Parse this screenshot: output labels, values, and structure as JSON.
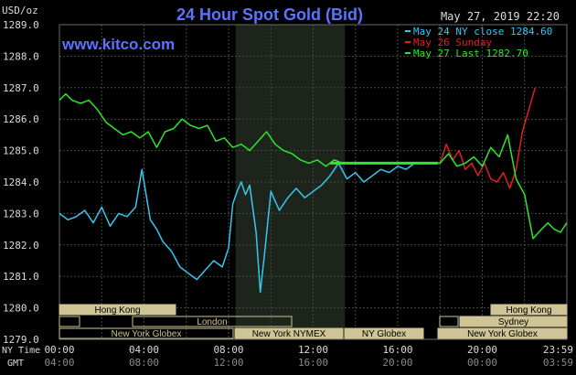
{
  "header": {
    "title": "24 Hour Spot Gold (Bid)",
    "timestamp": "May 27, 2019 22:20",
    "unit_label": "USD/oz",
    "website": "www.kitco.com"
  },
  "legend": [
    {
      "label": "May 24 NY close 1284.60",
      "color": "#35c8f0"
    },
    {
      "label": "May 26 Sunday",
      "color": "#e02020"
    },
    {
      "label": "May 27 Last 1282.70",
      "color": "#2ee62e"
    }
  ],
  "time_axis": {
    "ny_caption": "NY Time",
    "gmt_caption": "GMT",
    "ny_ticks": [
      "00:00",
      "04:00",
      "08:00",
      "12:00",
      "16:00",
      "20:00",
      "23:59"
    ],
    "gmt_ticks": [
      "04:00",
      "08:00",
      "12:00",
      "16:00",
      "20:00",
      "00:00",
      "03:59"
    ]
  },
  "sessions": {
    "hong_kong_1": "Hong Kong",
    "london": "London",
    "new_york_globex_1": "New York Globex",
    "new_york_nymex": "New York NYMEX",
    "ny_globex": "NY Globex",
    "hong_kong_2": "Hong Kong",
    "sydney": "Sydney",
    "new_york_globex_2": "New York Globex"
  },
  "colors": {
    "background": "#000000",
    "grid": "#3f4d3f",
    "nymex_shade": "#1c241c",
    "title": "#5b73ff",
    "session_box": "#cec495",
    "session_text": "#000000",
    "axis_text": "#dcdcdc"
  },
  "chart_data": {
    "type": "line",
    "title": "24 Hour Spot Gold (Bid)",
    "ylabel": "USD/oz",
    "xlabel": "NY Time",
    "xlim": [
      0,
      24
    ],
    "ylim": [
      1279.0,
      1289.0
    ],
    "yticks": [
      "1289.0",
      "1288.0",
      "1287.0",
      "1286.0",
      "1285.0",
      "1284.0",
      "1283.0",
      "1282.0",
      "1281.0",
      "1280.0",
      "1279.0"
    ],
    "grid": true,
    "legend_position": "top-right",
    "series": [
      {
        "name": "May 24 NY close 1284.60",
        "color": "#35c8f0",
        "x": [
          0,
          0.4,
          0.8,
          1.2,
          1.6,
          2.0,
          2.4,
          2.8,
          3.2,
          3.6,
          3.9,
          4.1,
          4.3,
          4.6,
          4.9,
          5.3,
          5.7,
          6.1,
          6.5,
          6.9,
          7.3,
          7.7,
          8.0,
          8.2,
          8.4,
          8.6,
          8.8,
          9.0,
          9.3,
          9.5,
          9.7,
          10.0,
          10.4,
          10.8,
          11.2,
          11.6,
          12.0,
          12.4,
          12.8,
          13.2,
          13.6,
          14.0,
          14.4,
          14.8,
          15.2,
          15.6,
          16.0,
          16.4,
          16.8,
          17.2
        ],
        "y": [
          1283.0,
          1282.8,
          1282.9,
          1283.1,
          1282.7,
          1283.2,
          1282.6,
          1283.0,
          1282.9,
          1283.2,
          1284.4,
          1283.6,
          1282.8,
          1282.5,
          1282.1,
          1281.8,
          1281.3,
          1281.1,
          1280.9,
          1281.2,
          1281.5,
          1281.3,
          1281.9,
          1283.3,
          1283.7,
          1284.0,
          1283.6,
          1283.9,
          1282.4,
          1280.5,
          1281.7,
          1283.7,
          1283.1,
          1283.5,
          1283.8,
          1283.5,
          1283.7,
          1283.9,
          1284.2,
          1284.6,
          1284.1,
          1284.3,
          1284.0,
          1284.2,
          1284.4,
          1284.3,
          1284.5,
          1284.4,
          1284.6,
          1284.6
        ]
      },
      {
        "name": "May 26 Sunday",
        "color": "#e02020",
        "x": [
          18.0,
          18.3,
          18.6,
          18.9,
          19.2,
          19.5,
          19.8,
          20.1,
          20.4,
          20.7,
          21.0,
          21.3,
          21.6,
          21.9,
          22.2,
          22.5
        ],
        "y": [
          1284.6,
          1285.2,
          1284.7,
          1285.0,
          1284.4,
          1284.6,
          1284.2,
          1284.6,
          1284.1,
          1284.0,
          1284.3,
          1283.8,
          1284.4,
          1285.6,
          1286.3,
          1287.0
        ]
      },
      {
        "name": "May 27 Last 1282.70",
        "color": "#2ee62e",
        "x": [
          0,
          0.3,
          0.6,
          1.0,
          1.4,
          1.8,
          2.2,
          2.6,
          3.0,
          3.4,
          3.8,
          4.2,
          4.6,
          5.0,
          5.4,
          5.8,
          6.2,
          6.6,
          7.0,
          7.4,
          7.8,
          8.2,
          8.6,
          9.0,
          9.4,
          9.8,
          10.2,
          10.6,
          11.0,
          11.4,
          11.8,
          12.2,
          12.6,
          13.0,
          13.4,
          13.8,
          14.5,
          15.5,
          16.5,
          17.2,
          18.0,
          18.4,
          18.8,
          19.2,
          19.6,
          20.0,
          20.4,
          20.8,
          21.2,
          21.6,
          22.0,
          22.4,
          22.8,
          23.1,
          23.4,
          23.7,
          23.99
        ],
        "y": [
          1286.6,
          1286.8,
          1286.6,
          1286.5,
          1286.6,
          1286.3,
          1285.9,
          1285.7,
          1285.5,
          1285.6,
          1285.4,
          1285.6,
          1285.1,
          1285.6,
          1285.7,
          1286.0,
          1285.8,
          1285.7,
          1285.8,
          1285.3,
          1285.4,
          1285.1,
          1285.2,
          1285.0,
          1285.3,
          1285.6,
          1285.2,
          1285.0,
          1284.9,
          1284.7,
          1284.6,
          1284.7,
          1284.5,
          1284.7,
          1284.6,
          1284.6,
          1284.6,
          1284.6,
          1284.6,
          1284.6,
          1284.6,
          1284.9,
          1284.5,
          1284.6,
          1284.8,
          1284.5,
          1285.1,
          1284.8,
          1285.5,
          1284.1,
          1283.6,
          1282.2,
          1282.5,
          1282.7,
          1282.5,
          1282.4,
          1282.7
        ]
      }
    ]
  }
}
